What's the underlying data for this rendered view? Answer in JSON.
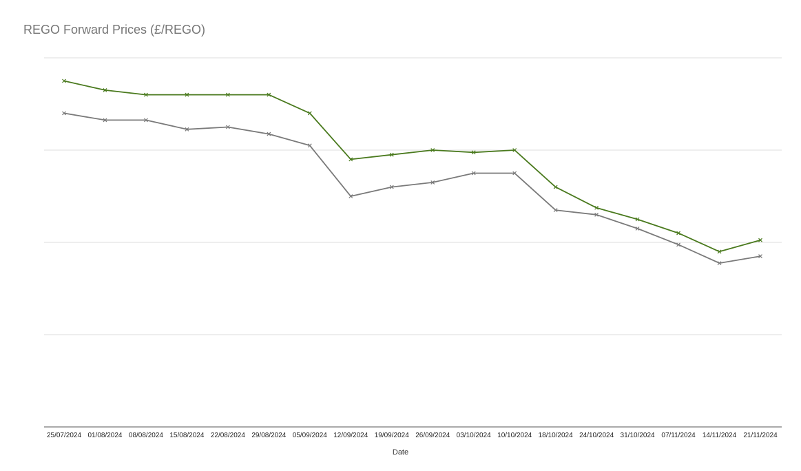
{
  "chart_data": {
    "type": "line",
    "title": "REGO Forward Prices (£/REGO)",
    "xlabel": "Date",
    "ylabel": "",
    "ylim": [
      0,
      4
    ],
    "grid": true,
    "x": [
      "25/07/2024",
      "01/08/2024",
      "08/08/2024",
      "15/08/2024",
      "22/08/2024",
      "29/08/2024",
      "05/09/2024",
      "12/09/2024",
      "19/09/2024",
      "26/09/2024",
      "03/10/2024",
      "10/10/2024",
      "18/10/2024",
      "24/10/2024",
      "31/10/2024",
      "07/11/2024",
      "14/11/2024",
      "21/11/2024"
    ],
    "series": [
      {
        "color": "#4a7a1e",
        "values": [
          3.75,
          3.65,
          3.6,
          3.6,
          3.6,
          3.6,
          3.4,
          2.9,
          2.95,
          3.0,
          2.975,
          3.0,
          2.6,
          2.375,
          2.25,
          2.1,
          1.9,
          2.025
        ]
      },
      {
        "color": "#7a7a7a",
        "values": [
          3.4,
          3.325,
          3.325,
          3.225,
          3.25,
          3.175,
          3.05,
          2.5,
          2.6,
          2.65,
          2.75,
          2.75,
          2.35,
          2.3,
          2.15,
          1.975,
          1.775,
          1.85
        ]
      }
    ]
  }
}
